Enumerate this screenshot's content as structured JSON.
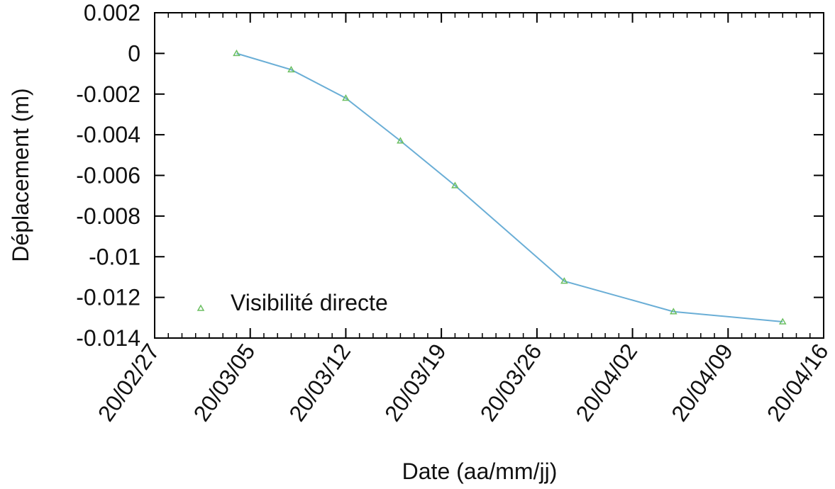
{
  "chart_data": {
    "type": "line",
    "xlabel": "Date (aa/mm/jj)",
    "ylabel": "Déplacement (m)",
    "ylim": [
      -0.014,
      0.002
    ],
    "yticks": [
      "0.002",
      "0",
      "-0.002",
      "-0.004",
      "-0.006",
      "-0.008",
      "-0.01",
      "-0.012",
      "-0.014"
    ],
    "xlim": [
      "2020-02-27",
      "2020-04-16"
    ],
    "xticks": [
      "20/02/27",
      "20/03/05",
      "20/03/12",
      "20/03/19",
      "20/03/26",
      "20/04/02",
      "20/04/09",
      "20/04/16"
    ],
    "grid": false,
    "legend_position": "bottom-left",
    "series": [
      {
        "name": "Visibilité directe",
        "line_color": "#6aaed6",
        "marker_color": "#6cbf62",
        "marker": "triangle",
        "x": [
          "2020-03-04",
          "2020-03-08",
          "2020-03-12",
          "2020-03-16",
          "2020-03-20",
          "2020-03-28",
          "2020-04-05",
          "2020-04-13"
        ],
        "y": [
          0.0,
          -0.0008,
          -0.0022,
          -0.0043,
          -0.0065,
          -0.0112,
          -0.0127,
          -0.0132
        ]
      }
    ]
  }
}
